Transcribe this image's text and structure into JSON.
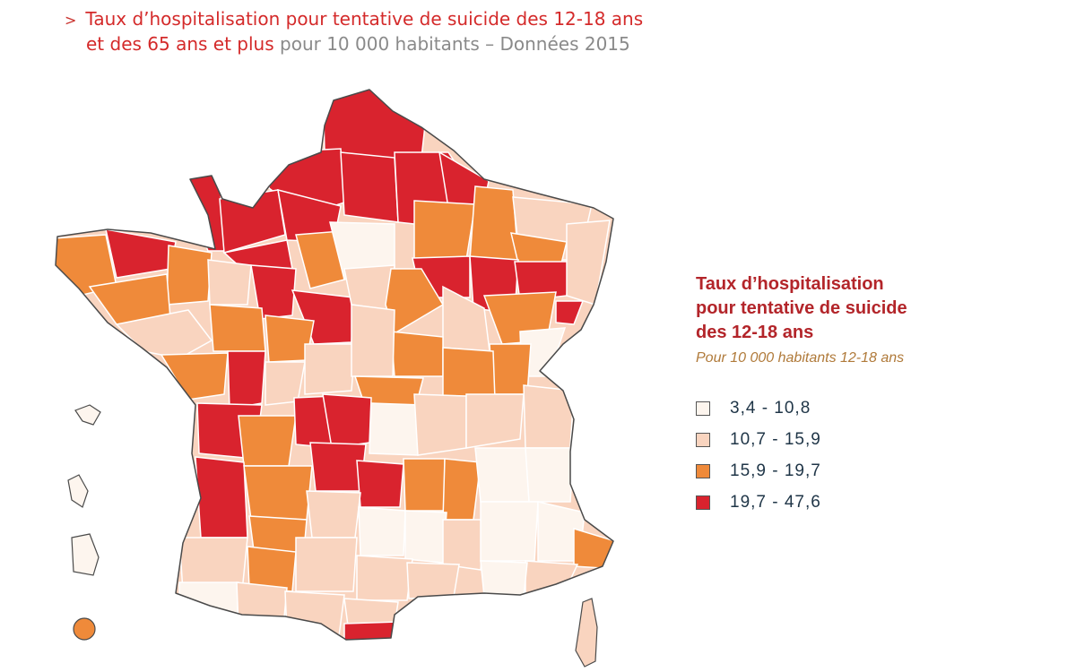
{
  "title": {
    "chevron": ">",
    "line1": "Taux d’hospitalisation pour tentative de suicide des 12-18 ans",
    "line2_main": "et des 65 ans et plus",
    "line2_sub": "pour 10 000 habitants – Données 2015"
  },
  "legend": {
    "title_line1": "Taux d’hospitalisation",
    "title_line2": "pour tentative de suicide",
    "title_line3": "des 12-18 ans",
    "subtitle": "Pour 10 000 habitants 12-18 ans",
    "classes": [
      {
        "label": "3,4 - 10,8",
        "color": "#fdf5ee"
      },
      {
        "label": "10,7 - 15,9",
        "color": "#f9d4bf"
      },
      {
        "label": "15,9 - 19,7",
        "color": "#ef8a3a"
      },
      {
        "label": "19,7 - 47,6",
        "color": "#d9232e"
      }
    ]
  },
  "colors": {
    "border": "#ffffff",
    "outline": "#4a4a4a"
  }
}
